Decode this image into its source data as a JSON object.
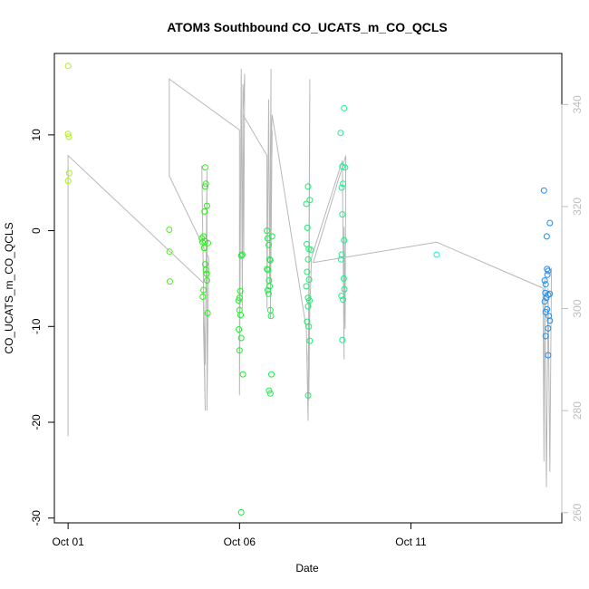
{
  "chart_data": {
    "type": "scatter",
    "title": "ATOM3 Southbound CO_UCATS_m_CO_QCLS",
    "xlabel": "Date",
    "ylabel": "CO_UCATS_m_CO_QCLS",
    "x_ticks": [
      {
        "day": 1,
        "label": "Oct 01"
      },
      {
        "day": 6,
        "label": "Oct 06"
      },
      {
        "day": 11,
        "label": "Oct 11"
      }
    ],
    "xlim": [
      0.6,
      15.4
    ],
    "ylim": [
      -30.5,
      18.5
    ],
    "y_ticks": [
      -30,
      -20,
      -10,
      0,
      10
    ],
    "y2lim": [
      258,
      350
    ],
    "y2_ticks": [
      260,
      280,
      300,
      320,
      340
    ],
    "points": [
      {
        "x": 1.0,
        "y": 17.2
      },
      {
        "x": 1.0,
        "y": 10.1
      },
      {
        "x": 1.02,
        "y": 9.8
      },
      {
        "x": 1.03,
        "y": 6.0
      },
      {
        "x": 1.0,
        "y": 5.2
      },
      {
        "x": 3.95,
        "y": 0.1
      },
      {
        "x": 3.96,
        "y": -2.2
      },
      {
        "x": 3.97,
        "y": -5.3
      },
      {
        "x": 4.9,
        "y": -0.8
      },
      {
        "x": 4.92,
        "y": -1.2
      },
      {
        "x": 4.95,
        "y": -0.6
      },
      {
        "x": 4.97,
        "y": -1.8
      },
      {
        "x": 5.0,
        "y": -3.5
      },
      {
        "x": 5.02,
        "y": -4.1
      },
      {
        "x": 5.04,
        "y": -4.5
      },
      {
        "x": 5.05,
        "y": -5.2
      },
      {
        "x": 5.0,
        "y": 6.6
      },
      {
        "x": 5.02,
        "y": 4.9
      },
      {
        "x": 5.0,
        "y": 4.6
      },
      {
        "x": 5.05,
        "y": 2.6
      },
      {
        "x": 4.98,
        "y": 2.0
      },
      {
        "x": 4.95,
        "y": -6.2
      },
      {
        "x": 4.93,
        "y": -6.9
      },
      {
        "x": 5.07,
        "y": -8.6
      },
      {
        "x": 5.0,
        "y": -1.1
      },
      {
        "x": 5.08,
        "y": -1.3
      },
      {
        "x": 5.97,
        "y": -7.3
      },
      {
        "x": 6.0,
        "y": -7.0
      },
      {
        "x": 6.02,
        "y": -6.3
      },
      {
        "x": 6.05,
        "y": -2.6
      },
      {
        "x": 6.08,
        "y": -2.5
      },
      {
        "x": 6.0,
        "y": -8.3
      },
      {
        "x": 6.03,
        "y": -8.8
      },
      {
        "x": 5.98,
        "y": -10.3
      },
      {
        "x": 6.05,
        "y": -11.2
      },
      {
        "x": 6.0,
        "y": -12.5
      },
      {
        "x": 6.1,
        "y": -15.0
      },
      {
        "x": 6.05,
        "y": -29.4
      },
      {
        "x": 6.8,
        "y": 0.0
      },
      {
        "x": 6.82,
        "y": -0.8
      },
      {
        "x": 6.85,
        "y": -1.5
      },
      {
        "x": 6.88,
        "y": -3.0
      },
      {
        "x": 6.9,
        "y": -3.1
      },
      {
        "x": 6.8,
        "y": -4.0
      },
      {
        "x": 6.83,
        "y": -4.1
      },
      {
        "x": 6.86,
        "y": -5.2
      },
      {
        "x": 6.88,
        "y": -5.8
      },
      {
        "x": 6.82,
        "y": -6.2
      },
      {
        "x": 6.85,
        "y": -6.6
      },
      {
        "x": 6.9,
        "y": -8.3
      },
      {
        "x": 6.92,
        "y": -8.9
      },
      {
        "x": 6.95,
        "y": -0.6
      },
      {
        "x": 6.93,
        "y": -15.0
      },
      {
        "x": 6.86,
        "y": -16.7
      },
      {
        "x": 6.9,
        "y": -17.0
      },
      {
        "x": 7.95,
        "y": 2.8
      },
      {
        "x": 8.0,
        "y": 4.6
      },
      {
        "x": 8.05,
        "y": 3.2
      },
      {
        "x": 7.98,
        "y": 0.3
      },
      {
        "x": 7.96,
        "y": -1.4
      },
      {
        "x": 8.02,
        "y": -1.9
      },
      {
        "x": 8.08,
        "y": -2.0
      },
      {
        "x": 8.0,
        "y": -3.0
      },
      {
        "x": 7.97,
        "y": -4.3
      },
      {
        "x": 8.03,
        "y": -5.1
      },
      {
        "x": 7.95,
        "y": -5.8
      },
      {
        "x": 8.0,
        "y": -7.0
      },
      {
        "x": 8.04,
        "y": -7.3
      },
      {
        "x": 8.0,
        "y": -7.9
      },
      {
        "x": 7.97,
        "y": -9.5
      },
      {
        "x": 8.02,
        "y": -10.0
      },
      {
        "x": 8.05,
        "y": -11.5
      },
      {
        "x": 8.0,
        "y": -17.2
      },
      {
        "x": 8.95,
        "y": 10.2
      },
      {
        "x": 9.05,
        "y": 12.8
      },
      {
        "x": 9.0,
        "y": 6.7
      },
      {
        "x": 9.08,
        "y": 6.6
      },
      {
        "x": 9.02,
        "y": 4.9
      },
      {
        "x": 8.98,
        "y": 4.5
      },
      {
        "x": 9.0,
        "y": 1.7
      },
      {
        "x": 9.05,
        "y": -1.0
      },
      {
        "x": 8.98,
        "y": -2.5
      },
      {
        "x": 8.96,
        "y": -3.0
      },
      {
        "x": 9.04,
        "y": -5.0
      },
      {
        "x": 9.06,
        "y": -6.1
      },
      {
        "x": 8.97,
        "y": -6.8
      },
      {
        "x": 9.02,
        "y": -7.2
      },
      {
        "x": 9.0,
        "y": -11.4
      },
      {
        "x": 11.75,
        "y": -2.5
      },
      {
        "x": 14.88,
        "y": 4.2
      },
      {
        "x": 15.05,
        "y": 0.8
      },
      {
        "x": 14.96,
        "y": -0.6
      },
      {
        "x": 14.97,
        "y": -4.0
      },
      {
        "x": 15.0,
        "y": -4.2
      },
      {
        "x": 14.98,
        "y": -4.6
      },
      {
        "x": 14.9,
        "y": -5.2
      },
      {
        "x": 14.93,
        "y": -5.6
      },
      {
        "x": 14.92,
        "y": -6.5
      },
      {
        "x": 15.0,
        "y": -6.7
      },
      {
        "x": 15.05,
        "y": -6.6
      },
      {
        "x": 14.95,
        "y": -7.0
      },
      {
        "x": 14.9,
        "y": -7.4
      },
      {
        "x": 14.97,
        "y": -8.2
      },
      {
        "x": 14.93,
        "y": -8.5
      },
      {
        "x": 15.02,
        "y": -8.9
      },
      {
        "x": 15.05,
        "y": -9.4
      },
      {
        "x": 15.0,
        "y": -10.2
      },
      {
        "x": 14.93,
        "y": -11.0
      },
      {
        "x": 15.0,
        "y": -13.0
      }
    ],
    "secondary_series_path": [
      [
        1.0,
        330
      ],
      [
        1.0,
        275
      ],
      [
        1.0,
        330
      ],
      [
        4.95,
        305
      ],
      [
        4.95,
        296
      ],
      [
        5.0,
        280
      ],
      [
        4.9,
        328
      ],
      [
        4.95,
        303
      ],
      [
        5.0,
        289
      ],
      [
        5.05,
        327
      ],
      [
        5.05,
        280
      ],
      [
        5.1,
        310
      ],
      [
        3.95,
        326
      ],
      [
        3.95,
        345
      ],
      [
        6.0,
        335
      ],
      [
        6.0,
        283
      ],
      [
        6.05,
        347
      ],
      [
        6.08,
        300
      ],
      [
        6.1,
        344
      ],
      [
        6.12,
        310
      ],
      [
        6.15,
        346
      ],
      [
        6.1,
        338
      ],
      [
        6.8,
        330
      ],
      [
        6.8,
        300
      ],
      [
        6.85,
        341
      ],
      [
        6.88,
        305
      ],
      [
        6.92,
        347
      ],
      [
        6.9,
        298
      ],
      [
        6.95,
        335
      ],
      [
        6.9,
        328
      ],
      [
        6.95,
        338
      ],
      [
        7.95,
        296
      ],
      [
        8.0,
        278
      ],
      [
        8.05,
        345
      ],
      [
        8.02,
        282
      ],
      [
        8.05,
        300
      ],
      [
        8.0,
        290
      ],
      [
        8.1,
        310
      ],
      [
        9.0,
        329
      ],
      [
        9.05,
        290
      ],
      [
        9.05,
        316
      ],
      [
        9.08,
        296
      ],
      [
        9.1,
        330
      ],
      [
        8.15,
        309
      ],
      [
        8.15,
        309
      ],
      [
        11.75,
        313
      ],
      [
        14.85,
        304
      ],
      [
        14.88,
        270
      ],
      [
        14.9,
        306
      ],
      [
        14.95,
        265
      ],
      [
        15.0,
        304
      ],
      [
        15.05,
        268
      ],
      [
        15.1,
        308
      ]
    ]
  }
}
